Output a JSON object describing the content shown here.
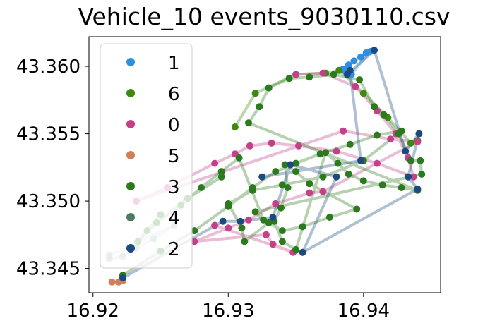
{
  "chart_data": {
    "type": "scatter",
    "title": "Vehicle_10 events_9030110.csv",
    "xlabel": "",
    "ylabel": "",
    "xlim": [
      16.9197,
      16.9457
    ],
    "ylim": [
      43.3432,
      43.3622
    ],
    "xticks": [
      16.92,
      16.93,
      16.94
    ],
    "xtick_labels": [
      "16.92",
      "16.93",
      "16.94"
    ],
    "yticks": [
      43.345,
      43.35,
      43.355,
      43.36
    ],
    "ytick_labels": [
      "43.345",
      "43.350",
      "43.355",
      "43.360"
    ],
    "grid": false,
    "legend_position": "upper-left",
    "series": [
      {
        "name": "1",
        "color": "#2e8fe0",
        "points": [
          [
            16.9385,
            43.3598
          ],
          [
            16.9389,
            43.3601
          ],
          [
            16.9393,
            43.3604
          ],
          [
            16.9398,
            43.3607
          ],
          [
            16.9402,
            43.361
          ],
          [
            16.9405,
            43.3611
          ],
          [
            16.9391,
            43.3594
          ],
          [
            16.9387,
            43.3596
          ]
        ]
      },
      {
        "name": "6",
        "color": "#3d8a12",
        "points": [
          [
            16.9305,
            43.3555
          ],
          [
            16.932,
            43.358
          ],
          [
            16.935,
            43.3594
          ],
          [
            16.9372,
            43.3595
          ],
          [
            16.9382,
            43.3597
          ],
          [
            16.94,
            43.358
          ],
          [
            16.9418,
            43.3562
          ],
          [
            16.9435,
            43.3543
          ],
          [
            16.944,
            43.3545
          ]
        ]
      },
      {
        "name": "0",
        "color": "#c4418a",
        "points": [
          [
            16.935,
            43.3594
          ],
          [
            16.937,
            43.3595
          ],
          [
            16.9394,
            43.3585
          ],
          [
            16.941,
            43.3567
          ],
          [
            16.9424,
            43.355
          ],
          [
            16.9433,
            43.3532
          ],
          [
            16.9437,
            43.3518
          ],
          [
            16.941,
            43.3528
          ],
          [
            16.938,
            43.3537
          ],
          [
            16.9352,
            43.3541
          ],
          [
            16.9332,
            43.3543
          ],
          [
            16.9316,
            43.3541
          ],
          [
            16.9305,
            43.3535
          ],
          [
            16.929,
            43.3528
          ],
          [
            16.9255,
            43.351
          ],
          [
            16.9232,
            43.35
          ],
          [
            16.9385,
            43.3552
          ],
          [
            16.942,
            43.3546
          ],
          [
            16.944,
            43.3544
          ],
          [
            16.937,
            43.3507
          ],
          [
            16.936,
            43.3506
          ],
          [
            16.9335,
            43.3498
          ],
          [
            16.9315,
            43.3486
          ],
          [
            16.93,
            43.348
          ],
          [
            16.9275,
            43.347
          ],
          [
            16.9328,
            43.3475
          ],
          [
            16.9333,
            43.3468
          ],
          [
            16.9348,
            43.3462
          ],
          [
            16.929,
            43.3482
          ]
        ]
      },
      {
        "name": "5",
        "color": "#cf7f5b",
        "points": [
          [
            16.9214,
            43.344
          ],
          [
            16.9219,
            43.344
          ],
          [
            16.9222,
            43.3441
          ]
        ]
      },
      {
        "name": "3",
        "color": "#2b7a1e",
        "points": [
          [
            16.9222,
            43.3445
          ],
          [
            16.925,
            43.3463
          ],
          [
            16.9275,
            43.3478
          ],
          [
            16.93,
            43.3496
          ],
          [
            16.9318,
            43.351
          ],
          [
            16.9335,
            43.3522
          ],
          [
            16.935,
            43.3528
          ],
          [
            16.9368,
            43.3535
          ],
          [
            16.939,
            43.3542
          ],
          [
            16.941,
            43.3549
          ],
          [
            16.9428,
            43.3552
          ],
          [
            16.94,
            43.353
          ],
          [
            16.937,
            43.3518
          ],
          [
            16.934,
            43.3512
          ],
          [
            16.9318,
            43.3508
          ],
          [
            16.93,
            43.3498
          ],
          [
            16.931,
            43.348
          ],
          [
            16.9312,
            43.347
          ],
          [
            16.933,
            43.3484
          ],
          [
            16.934,
            43.3478
          ],
          [
            16.9355,
            43.3481
          ],
          [
            16.9375,
            43.3488
          ],
          [
            16.9395,
            43.3494
          ],
          [
            16.936,
            43.3513
          ],
          [
            16.935,
            43.3522
          ],
          [
            16.9342,
            43.3527
          ],
          [
            16.9344,
            43.351
          ],
          [
            16.9339,
            43.3495
          ],
          [
            16.9334,
            43.3485
          ],
          [
            16.934,
            43.347
          ],
          [
            16.935,
            43.3464
          ],
          [
            16.9372,
            43.3536
          ],
          [
            16.9381,
            43.3528
          ],
          [
            16.9389,
            43.352
          ],
          [
            16.94,
            43.3515
          ],
          [
            16.9414,
            43.3512
          ],
          [
            16.9428,
            43.351
          ],
          [
            16.944,
            43.3508
          ],
          [
            16.9315,
            43.3558
          ],
          [
            16.9323,
            43.357
          ],
          [
            16.933,
            43.3584
          ],
          [
            16.9345,
            43.3591
          ],
          [
            16.936,
            43.3592
          ],
          [
            16.9378,
            43.3594
          ],
          [
            16.9397,
            43.359
          ],
          [
            16.9408,
            43.357
          ],
          [
            16.9415,
            43.3564
          ],
          [
            16.9426,
            43.355
          ],
          [
            16.9435,
            43.353
          ],
          [
            16.9442,
            43.353
          ],
          [
            16.9443,
            43.352
          ],
          [
            16.932,
            43.3492
          ],
          [
            16.9326,
            43.3486
          ],
          [
            16.9308,
            43.3532
          ],
          [
            16.9295,
            43.3522
          ],
          [
            16.928,
            43.351
          ],
          [
            16.9265,
            43.3497
          ],
          [
            16.9247,
            43.3484
          ],
          [
            16.9233,
            43.347
          ],
          [
            16.925,
            43.349
          ],
          [
            16.924,
            43.3478
          ],
          [
            16.927,
            43.3502
          ],
          [
            16.9295,
            43.3518
          ]
        ]
      },
      {
        "name": "4",
        "color": "#4c7a63",
        "points": [
          [
            16.9212,
            43.3457
          ],
          [
            16.9222,
            43.3459
          ],
          [
            16.9232,
            43.3465
          ],
          [
            16.9245,
            43.3472
          ],
          [
            16.926,
            43.3482
          ],
          [
            16.9212,
            43.346
          ]
        ]
      },
      {
        "name": "2",
        "color": "#1a4a7f",
        "points": [
          [
            16.9222,
            43.3443
          ],
          [
            16.9296,
            43.3485
          ],
          [
            16.9309,
            43.3485
          ],
          [
            16.9333,
            43.3488
          ],
          [
            16.9346,
            43.3527
          ],
          [
            16.938,
            43.3518
          ],
          [
            16.9355,
            43.3462
          ],
          [
            16.944,
            43.3509
          ],
          [
            16.9433,
            43.3518
          ],
          [
            16.9441,
            43.355
          ],
          [
            16.9431,
            43.3537
          ],
          [
            16.9408,
            43.3612
          ],
          [
            16.9388,
            43.3594
          ],
          [
            16.939,
            43.3597
          ],
          [
            16.9398,
            43.353
          ],
          [
            16.9325,
            43.3518
          ]
        ]
      }
    ]
  }
}
